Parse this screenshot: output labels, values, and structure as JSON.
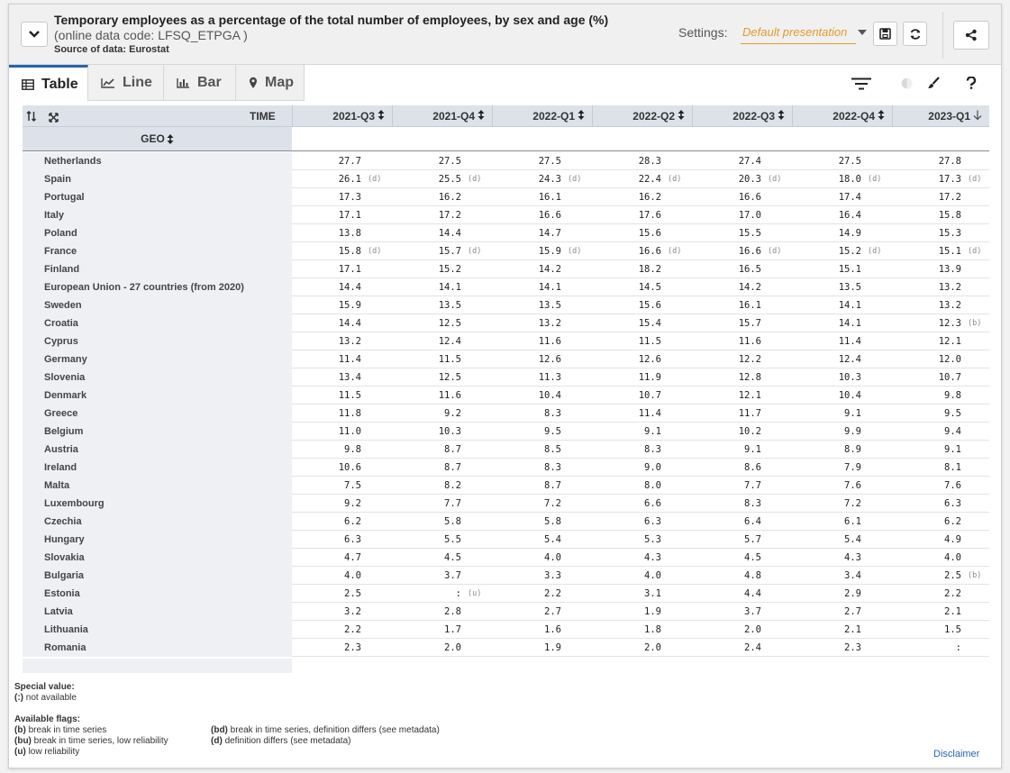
{
  "header": {
    "title": "Temporary employees as a percentage of the total number of employees, by sex and age (%)",
    "subtitle": "(online data code: LFSQ_ETPGA )",
    "source": "Source of data: Eurostat",
    "settings_label": "Settings:",
    "settings_value": "Default presentation"
  },
  "tabs": [
    {
      "label": "Table",
      "icon": "table-icon"
    },
    {
      "label": "Line",
      "icon": "line-chart-icon"
    },
    {
      "label": "Bar",
      "icon": "bar-chart-icon"
    },
    {
      "label": "Map",
      "icon": "map-pin-icon"
    }
  ],
  "table": {
    "time_label": "TIME",
    "geo_label": "GEO",
    "columns": [
      "2021-Q3",
      "2021-Q4",
      "2022-Q1",
      "2022-Q2",
      "2022-Q3",
      "2022-Q4",
      "2023-Q1"
    ],
    "rows": [
      {
        "geo": "Netherlands",
        "values": [
          "27.7",
          "27.5",
          "27.5",
          "28.3",
          "27.4",
          "27.5",
          "27.8"
        ],
        "flags": [
          "",
          "",
          "",
          "",
          "",
          "",
          ""
        ]
      },
      {
        "geo": "Spain",
        "values": [
          "26.1",
          "25.5",
          "24.3",
          "22.4",
          "20.3",
          "18.0",
          "17.3"
        ],
        "flags": [
          "(d)",
          "(d)",
          "(d)",
          "(d)",
          "(d)",
          "(d)",
          "(d)"
        ]
      },
      {
        "geo": "Portugal",
        "values": [
          "17.3",
          "16.2",
          "16.1",
          "16.2",
          "16.6",
          "17.4",
          "17.2"
        ],
        "flags": [
          "",
          "",
          "",
          "",
          "",
          "",
          ""
        ]
      },
      {
        "geo": "Italy",
        "values": [
          "17.1",
          "17.2",
          "16.6",
          "17.6",
          "17.0",
          "16.4",
          "15.8"
        ],
        "flags": [
          "",
          "",
          "",
          "",
          "",
          "",
          ""
        ]
      },
      {
        "geo": "Poland",
        "values": [
          "13.8",
          "14.4",
          "14.7",
          "15.6",
          "15.5",
          "14.9",
          "15.3"
        ],
        "flags": [
          "",
          "",
          "",
          "",
          "",
          "",
          ""
        ]
      },
      {
        "geo": "France",
        "values": [
          "15.8",
          "15.7",
          "15.9",
          "16.6",
          "16.6",
          "15.2",
          "15.1"
        ],
        "flags": [
          "(d)",
          "(d)",
          "(d)",
          "(d)",
          "(d)",
          "(d)",
          "(d)"
        ]
      },
      {
        "geo": "Finland",
        "values": [
          "17.1",
          "15.2",
          "14.2",
          "18.2",
          "16.5",
          "15.1",
          "13.9"
        ],
        "flags": [
          "",
          "",
          "",
          "",
          "",
          "",
          ""
        ]
      },
      {
        "geo": "European Union - 27 countries (from 2020)",
        "values": [
          "14.4",
          "14.1",
          "14.1",
          "14.5",
          "14.2",
          "13.5",
          "13.2"
        ],
        "flags": [
          "",
          "",
          "",
          "",
          "",
          "",
          ""
        ]
      },
      {
        "geo": "Sweden",
        "values": [
          "15.9",
          "13.5",
          "13.5",
          "15.6",
          "16.1",
          "14.1",
          "13.2"
        ],
        "flags": [
          "",
          "",
          "",
          "",
          "",
          "",
          ""
        ]
      },
      {
        "geo": "Croatia",
        "values": [
          "14.4",
          "12.5",
          "13.2",
          "15.4",
          "15.7",
          "14.1",
          "12.3"
        ],
        "flags": [
          "",
          "",
          "",
          "",
          "",
          "",
          "(b)"
        ]
      },
      {
        "geo": "Cyprus",
        "values": [
          "13.2",
          "12.4",
          "11.6",
          "11.5",
          "11.6",
          "11.4",
          "12.1"
        ],
        "flags": [
          "",
          "",
          "",
          "",
          "",
          "",
          ""
        ]
      },
      {
        "geo": "Germany",
        "values": [
          "11.4",
          "11.5",
          "12.6",
          "12.6",
          "12.2",
          "12.4",
          "12.0"
        ],
        "flags": [
          "",
          "",
          "",
          "",
          "",
          "",
          ""
        ]
      },
      {
        "geo": "Slovenia",
        "values": [
          "13.4",
          "12.5",
          "11.3",
          "11.9",
          "12.8",
          "10.3",
          "10.7"
        ],
        "flags": [
          "",
          "",
          "",
          "",
          "",
          "",
          ""
        ]
      },
      {
        "geo": "Denmark",
        "values": [
          "11.5",
          "11.6",
          "10.4",
          "10.7",
          "12.1",
          "10.4",
          "9.8"
        ],
        "flags": [
          "",
          "",
          "",
          "",
          "",
          "",
          ""
        ]
      },
      {
        "geo": "Greece",
        "values": [
          "11.8",
          "9.2",
          "8.3",
          "11.4",
          "11.7",
          "9.1",
          "9.5"
        ],
        "flags": [
          "",
          "",
          "",
          "",
          "",
          "",
          ""
        ]
      },
      {
        "geo": "Belgium",
        "values": [
          "11.0",
          "10.3",
          "9.5",
          "9.1",
          "10.2",
          "9.9",
          "9.4"
        ],
        "flags": [
          "",
          "",
          "",
          "",
          "",
          "",
          ""
        ]
      },
      {
        "geo": "Austria",
        "values": [
          "9.8",
          "8.7",
          "8.5",
          "8.3",
          "9.1",
          "8.9",
          "9.1"
        ],
        "flags": [
          "",
          "",
          "",
          "",
          "",
          "",
          ""
        ]
      },
      {
        "geo": "Ireland",
        "values": [
          "10.6",
          "8.7",
          "8.3",
          "9.0",
          "8.6",
          "7.9",
          "8.1"
        ],
        "flags": [
          "",
          "",
          "",
          "",
          "",
          "",
          ""
        ]
      },
      {
        "geo": "Malta",
        "values": [
          "7.5",
          "8.2",
          "8.7",
          "8.0",
          "7.7",
          "7.6",
          "7.6"
        ],
        "flags": [
          "",
          "",
          "",
          "",
          "",
          "",
          ""
        ]
      },
      {
        "geo": "Luxembourg",
        "values": [
          "9.2",
          "7.7",
          "7.2",
          "6.6",
          "8.3",
          "7.2",
          "6.3"
        ],
        "flags": [
          "",
          "",
          "",
          "",
          "",
          "",
          ""
        ]
      },
      {
        "geo": "Czechia",
        "values": [
          "6.2",
          "5.8",
          "5.8",
          "6.3",
          "6.4",
          "6.1",
          "6.2"
        ],
        "flags": [
          "",
          "",
          "",
          "",
          "",
          "",
          ""
        ]
      },
      {
        "geo": "Hungary",
        "values": [
          "6.3",
          "5.5",
          "5.4",
          "5.3",
          "5.7",
          "5.4",
          "4.9"
        ],
        "flags": [
          "",
          "",
          "",
          "",
          "",
          "",
          ""
        ]
      },
      {
        "geo": "Slovakia",
        "values": [
          "4.7",
          "4.5",
          "4.0",
          "4.3",
          "4.5",
          "4.3",
          "4.0"
        ],
        "flags": [
          "",
          "",
          "",
          "",
          "",
          "",
          ""
        ]
      },
      {
        "geo": "Bulgaria",
        "values": [
          "4.0",
          "3.7",
          "3.3",
          "4.0",
          "4.8",
          "3.4",
          "2.5"
        ],
        "flags": [
          "",
          "",
          "",
          "",
          "",
          "",
          "(b)"
        ]
      },
      {
        "geo": "Estonia",
        "values": [
          "2.5",
          ":",
          "2.2",
          "3.1",
          "4.4",
          "2.9",
          "2.2"
        ],
        "flags": [
          "",
          "(u)",
          "",
          "",
          "",
          "",
          ""
        ]
      },
      {
        "geo": "Latvia",
        "values": [
          "3.2",
          "2.8",
          "2.7",
          "1.9",
          "3.7",
          "2.7",
          "2.1"
        ],
        "flags": [
          "",
          "",
          "",
          "",
          "",
          "",
          ""
        ]
      },
      {
        "geo": "Lithuania",
        "values": [
          "2.2",
          "1.7",
          "1.6",
          "1.8",
          "2.0",
          "2.1",
          "1.5"
        ],
        "flags": [
          "",
          "",
          "",
          "",
          "",
          "",
          ""
        ]
      },
      {
        "geo": "Romania",
        "values": [
          "2.3",
          "2.0",
          "1.9",
          "2.0",
          "2.4",
          "2.3",
          ":"
        ],
        "flags": [
          "",
          "",
          "",
          "",
          "",
          "",
          ""
        ]
      }
    ]
  },
  "legend": {
    "special_title": "Special value:",
    "special_items": [
      {
        "code": "(:)",
        "text": "not available"
      }
    ],
    "flags_title": "Available flags:",
    "flags_left": [
      {
        "code": "(b)",
        "text": "break in time series"
      },
      {
        "code": "(bu)",
        "text": "break in time series, low reliability"
      },
      {
        "code": "(u)",
        "text": "low reliability"
      }
    ],
    "flags_right": [
      {
        "code": "(bd)",
        "text": "break in time series, definition differs (see metadata)"
      },
      {
        "code": "(d)",
        "text": "definition differs (see metadata)"
      }
    ]
  },
  "disclaimer": "Disclaimer",
  "colors": {
    "accent": "#2a64a8",
    "settings": "#e39a2d"
  }
}
